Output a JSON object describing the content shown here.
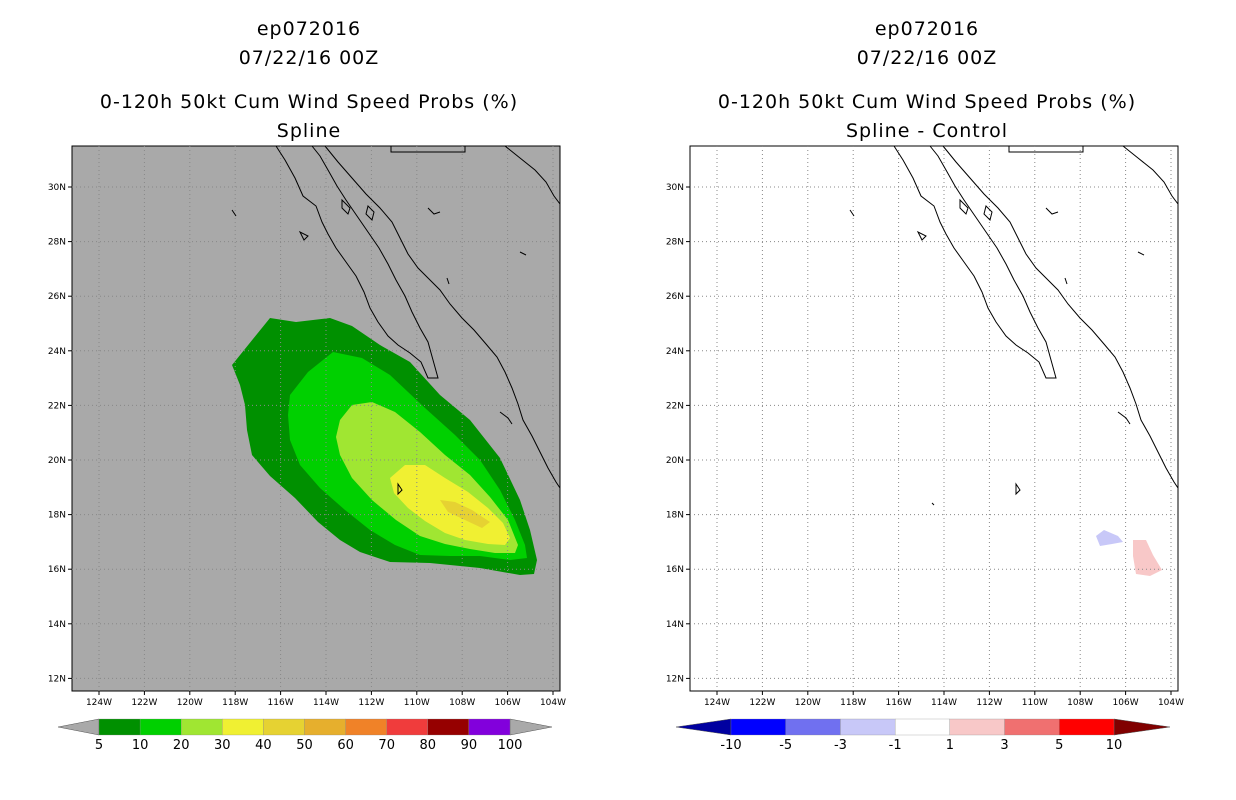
{
  "left_panel": {
    "storm_id": "ep072016",
    "datetime": "07/22/16 00Z",
    "product": "0-120h 50kt Cum Wind Speed Probs (%)",
    "subtitle": "Spline",
    "background_color": "#a9a9a9",
    "colorbar": {
      "colors": [
        "#009000",
        "#00d000",
        "#a0e632",
        "#f0f032",
        "#e6d232",
        "#e6af2d",
        "#f08228",
        "#f03c3c",
        "#960000",
        "#8200dc"
      ],
      "labels": [
        "5",
        "10",
        "20",
        "30",
        "40",
        "50",
        "60",
        "70",
        "80",
        "90",
        "100"
      ]
    }
  },
  "right_panel": {
    "storm_id": "ep072016",
    "datetime": "07/22/16 00Z",
    "product": "0-120h 50kt Cum Wind Speed Probs (%)",
    "subtitle": "Spline - Control",
    "background_color": "#ffffff",
    "colorbar": {
      "colors": [
        "#0000a0",
        "#0000ff",
        "#7070f0",
        "#c8c8f8",
        "#ffffff",
        "#f8c8c8",
        "#f07070",
        "#ff0000",
        "#800000"
      ],
      "labels": [
        "-10",
        "-5",
        "-3",
        "-1",
        "1",
        "3",
        "5",
        "10"
      ]
    }
  },
  "map": {
    "lat_labels": [
      "30N",
      "28N",
      "26N",
      "24N",
      "22N",
      "20N",
      "18N",
      "16N",
      "14N",
      "12N"
    ],
    "lon_labels": [
      "124W",
      "122W",
      "120W",
      "118W",
      "116W",
      "114W",
      "112W",
      "110W",
      "108W",
      "106W",
      "104W"
    ]
  }
}
